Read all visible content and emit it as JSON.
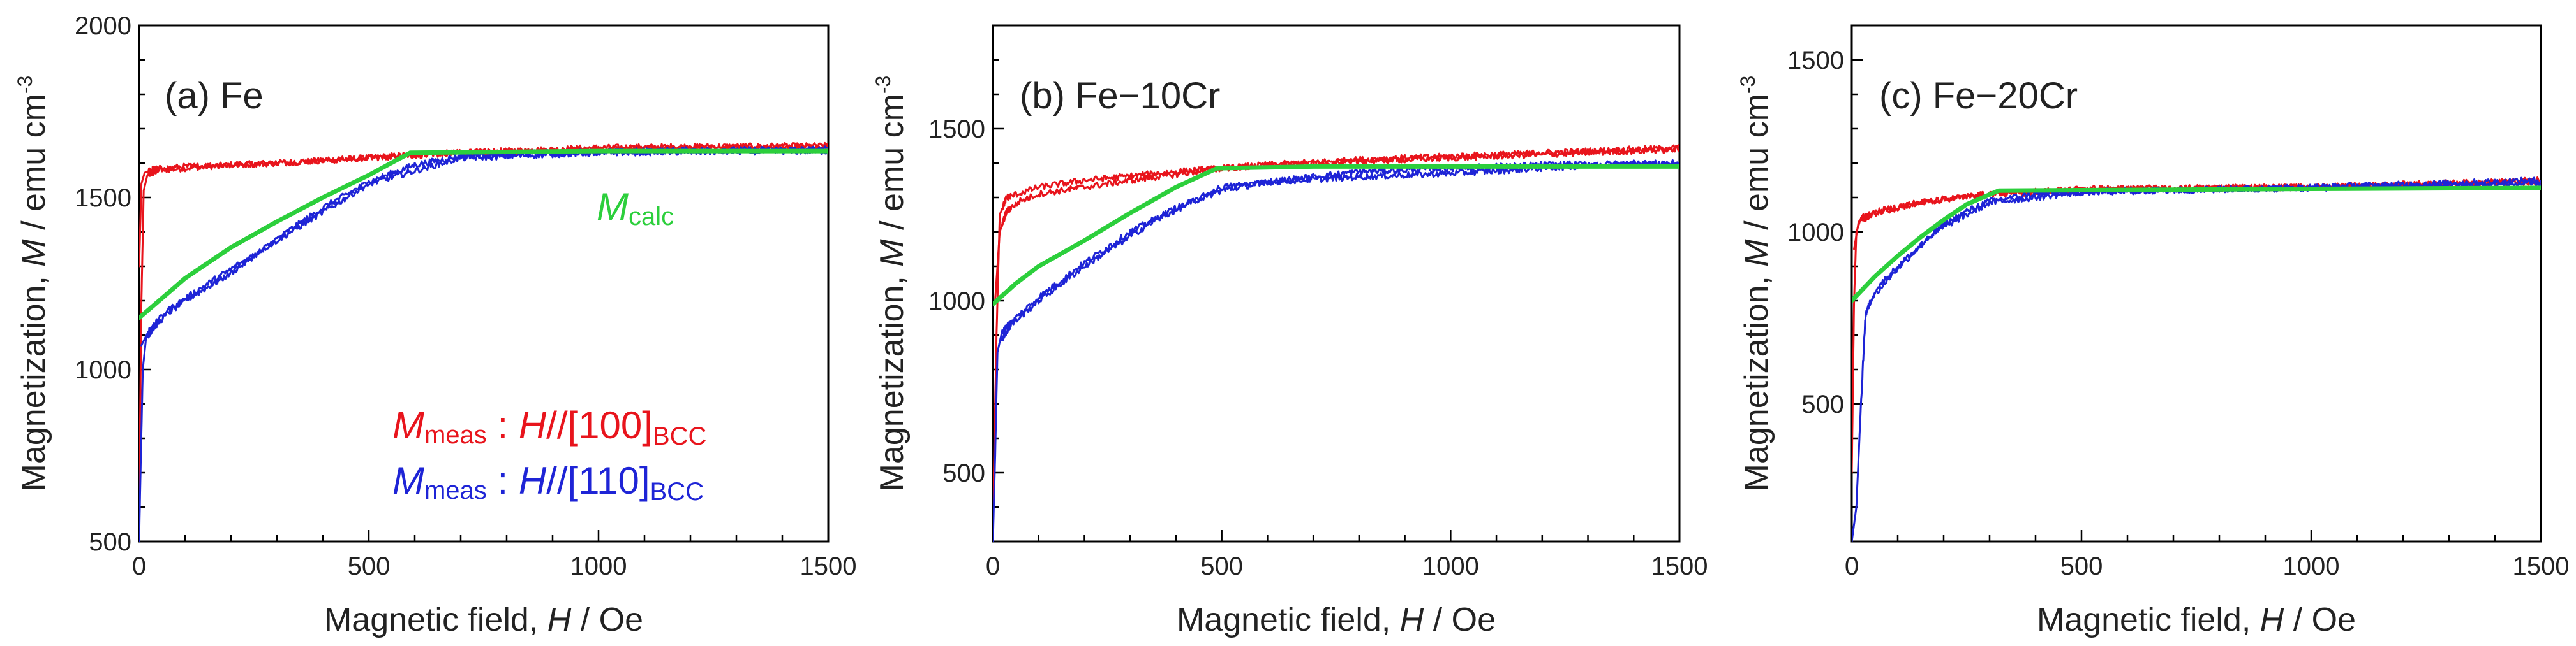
{
  "colors": {
    "red": "#e8141c",
    "blue": "#1e24d6",
    "green": "#2ccf3c",
    "axis": "#000000",
    "text": "#222222"
  },
  "chart_data": [
    {
      "type": "line",
      "panel_label": "(a) Fe",
      "xlabel": {
        "main": "Magnetic field, ",
        "sym": "H",
        "unit": " / Oe"
      },
      "ylabel": {
        "main": "Magnetization, ",
        "sym": "M",
        "unit": " / emu cm",
        "exp": "-3"
      },
      "xlim": [
        0,
        1500
      ],
      "ylim": [
        500,
        2000
      ],
      "xticks": [
        0,
        500,
        1000,
        1500
      ],
      "yticks": [
        500,
        1000,
        1500,
        2000
      ],
      "series": [
        {
          "color": "red",
          "points": [
            [
              0,
              600
            ],
            [
              5,
              1200
            ],
            [
              10,
              1520
            ],
            [
              18,
              1565
            ],
            [
              40,
              1578
            ],
            [
              100,
              1585
            ],
            [
              200,
              1595
            ],
            [
              400,
              1607
            ],
            [
              600,
              1625
            ],
            [
              800,
              1635
            ],
            [
              1000,
              1645
            ],
            [
              1200,
              1648
            ],
            [
              1500,
              1650
            ]
          ]
        },
        {
          "color": "red",
          "points": [
            [
              0,
              1300
            ],
            [
              5,
              1540
            ],
            [
              12,
              1572
            ],
            [
              30,
              1582
            ],
            [
              100,
              1590
            ],
            [
              300,
              1600
            ],
            [
              500,
              1615
            ],
            [
              700,
              1630
            ],
            [
              1000,
              1640
            ],
            [
              1500,
              1648
            ]
          ]
        },
        {
          "color": "blue",
          "points": [
            [
              0,
              500
            ],
            [
              3,
              700
            ],
            [
              8,
              1000
            ],
            [
              15,
              1090
            ],
            [
              30,
              1120
            ],
            [
              60,
              1160
            ],
            [
              100,
              1200
            ],
            [
              200,
              1280
            ],
            [
              300,
              1380
            ],
            [
              400,
              1470
            ],
            [
              500,
              1545
            ],
            [
              600,
              1595
            ],
            [
              700,
              1620
            ],
            [
              800,
              1628
            ],
            [
              1000,
              1632
            ],
            [
              1200,
              1638
            ],
            [
              1500,
              1640
            ]
          ]
        },
        {
          "color": "blue",
          "points": [
            [
              5,
              1070
            ],
            [
              20,
              1110
            ],
            [
              60,
              1170
            ],
            [
              150,
              1250
            ],
            [
              300,
              1375
            ],
            [
              500,
              1540
            ],
            [
              700,
              1615
            ],
            [
              1000,
              1630
            ],
            [
              1500,
              1635
            ]
          ]
        },
        {
          "color": "green",
          "points": [
            [
              0,
              1150
            ],
            [
              100,
              1265
            ],
            [
              200,
              1355
            ],
            [
              300,
              1430
            ],
            [
              400,
              1500
            ],
            [
              500,
              1565
            ],
            [
              590,
              1630
            ],
            [
              1000,
              1635
            ],
            [
              1500,
              1635
            ]
          ]
        }
      ],
      "annotations": {
        "calc": {
          "sym": "M",
          "sub": "calc"
        },
        "meas_100": {
          "sym": "M",
          "sub": "meas",
          "sep": " : ",
          "h": "H",
          "dir": "//[100]",
          "phase": "BCC"
        },
        "meas_110": {
          "sym": "M",
          "sub": "meas",
          "sep": " : ",
          "h": "H",
          "dir": "//[110]",
          "phase": "BCC"
        }
      }
    },
    {
      "type": "line",
      "panel_label": "(b) Fe−10Cr",
      "xlabel": {
        "main": "Magnetic field, ",
        "sym": "H",
        "unit": " / Oe"
      },
      "ylabel": {
        "main": "Magnetization, ",
        "sym": "M",
        "unit": " / emu cm",
        "exp": "-3"
      },
      "xlim": [
        0,
        1500
      ],
      "ylim": [
        300,
        1800
      ],
      "xticks": [
        0,
        500,
        1000,
        1500
      ],
      "yticks": [
        500,
        1000,
        1500
      ],
      "series": [
        {
          "color": "red",
          "points": [
            [
              0,
              350
            ],
            [
              8,
              900
            ],
            [
              15,
              1250
            ],
            [
              30,
              1300
            ],
            [
              100,
              1330
            ],
            [
              200,
              1350
            ],
            [
              400,
              1375
            ],
            [
              600,
              1395
            ],
            [
              800,
              1410
            ],
            [
              1000,
              1420
            ],
            [
              1200,
              1430
            ],
            [
              1400,
              1440
            ],
            [
              1500,
              1445
            ]
          ]
        },
        {
          "color": "red",
          "points": [
            [
              5,
              1000
            ],
            [
              15,
              1200
            ],
            [
              30,
              1260
            ],
            [
              60,
              1290
            ],
            [
              100,
              1310
            ],
            [
              250,
              1340
            ],
            [
              500,
              1385
            ],
            [
              800,
              1405
            ],
            [
              1200,
              1425
            ],
            [
              1500,
              1440
            ]
          ]
        },
        {
          "color": "blue",
          "points": [
            [
              0,
              300
            ],
            [
              5,
              550
            ],
            [
              10,
              850
            ],
            [
              20,
              910
            ],
            [
              50,
              950
            ],
            [
              100,
              1010
            ],
            [
              200,
              1110
            ],
            [
              300,
              1200
            ],
            [
              400,
              1270
            ],
            [
              500,
              1320
            ],
            [
              600,
              1345
            ],
            [
              800,
              1360
            ],
            [
              1000,
              1370
            ],
            [
              1200,
              1385
            ],
            [
              1400,
              1400
            ],
            [
              1500,
              1395
            ]
          ]
        },
        {
          "color": "blue",
          "points": [
            [
              15,
              880
            ],
            [
              40,
              930
            ],
            [
              100,
              1000
            ],
            [
              200,
              1100
            ],
            [
              350,
              1230
            ],
            [
              500,
              1330
            ],
            [
              800,
              1375
            ],
            [
              1200,
              1395
            ],
            [
              1500,
              1400
            ]
          ]
        },
        {
          "color": "green",
          "points": [
            [
              0,
              990
            ],
            [
              50,
              1050
            ],
            [
              100,
              1100
            ],
            [
              200,
              1175
            ],
            [
              300,
              1255
            ],
            [
              400,
              1330
            ],
            [
              490,
              1385
            ],
            [
              700,
              1390
            ],
            [
              1000,
              1390
            ],
            [
              1500,
              1390
            ]
          ]
        }
      ]
    },
    {
      "type": "line",
      "panel_label": "(c) Fe−20Cr",
      "xlabel": {
        "main": "Magnetic field, ",
        "sym": "H",
        "unit": " / Oe"
      },
      "ylabel": {
        "main": "Magnetization, ",
        "sym": "M",
        "unit": " / emu cm",
        "exp": "-3"
      },
      "xlim": [
        0,
        1500
      ],
      "ylim": [
        100,
        1600
      ],
      "xticks": [
        0,
        500,
        1000,
        1500
      ],
      "yticks": [
        500,
        1000,
        1500
      ],
      "series": [
        {
          "color": "red",
          "points": [
            [
              0,
              300
            ],
            [
              5,
              800
            ],
            [
              10,
              1000
            ],
            [
              20,
              1040
            ],
            [
              60,
              1060
            ],
            [
              120,
              1080
            ],
            [
              200,
              1095
            ],
            [
              300,
              1110
            ],
            [
              500,
              1125
            ],
            [
              800,
              1128
            ],
            [
              1000,
              1130
            ],
            [
              1200,
              1138
            ],
            [
              1400,
              1145
            ],
            [
              1500,
              1150
            ]
          ]
        },
        {
          "color": "red",
          "points": [
            [
              5,
              950
            ],
            [
              15,
              1030
            ],
            [
              50,
              1055
            ],
            [
              150,
              1085
            ],
            [
              300,
              1110
            ],
            [
              600,
              1125
            ],
            [
              1000,
              1130
            ],
            [
              1500,
              1145
            ]
          ]
        },
        {
          "color": "blue",
          "points": [
            [
              0,
              100
            ],
            [
              10,
              200
            ],
            [
              20,
              500
            ],
            [
              30,
              760
            ],
            [
              50,
              830
            ],
            [
              100,
              900
            ],
            [
              150,
              960
            ],
            [
              200,
              1020
            ],
            [
              250,
              1060
            ],
            [
              300,
              1090
            ],
            [
              400,
              1110
            ],
            [
              600,
              1120
            ],
            [
              800,
              1125
            ],
            [
              1000,
              1130
            ],
            [
              1200,
              1138
            ],
            [
              1500,
              1150
            ]
          ]
        },
        {
          "color": "blue",
          "points": [
            [
              40,
              800
            ],
            [
              90,
              880
            ],
            [
              180,
              1000
            ],
            [
              300,
              1085
            ],
            [
              500,
              1115
            ],
            [
              900,
              1125
            ],
            [
              1500,
              1140
            ]
          ]
        },
        {
          "color": "green",
          "points": [
            [
              0,
              800
            ],
            [
              50,
              870
            ],
            [
              100,
              930
            ],
            [
              150,
              985
            ],
            [
              200,
              1035
            ],
            [
              250,
              1080
            ],
            [
              320,
              1120
            ],
            [
              600,
              1122
            ],
            [
              1000,
              1125
            ],
            [
              1500,
              1128
            ]
          ]
        }
      ]
    }
  ]
}
